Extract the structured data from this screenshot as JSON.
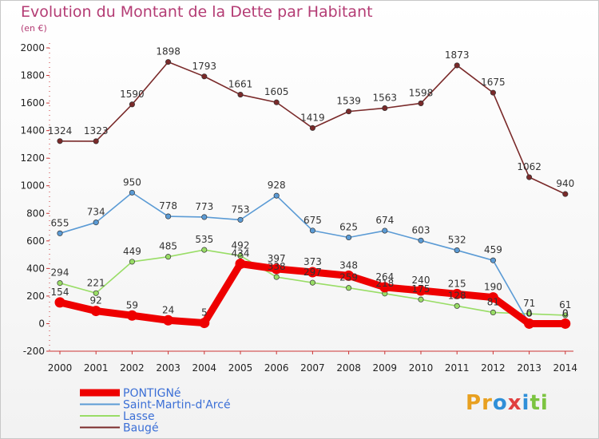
{
  "title": "Evolution du Montant de la Dette par Habitant",
  "subtitle": "(en €)",
  "logo": {
    "letters": [
      "P",
      "r",
      "o",
      "x",
      "i",
      "t",
      "i"
    ],
    "colors": [
      "#e8a020",
      "#e8a020",
      "#2f8fd8",
      "#e04040",
      "#2f8fd8",
      "#7cc440",
      "#7cc440"
    ]
  },
  "chart_data": {
    "type": "line",
    "x": [
      "2000",
      "2001",
      "2002",
      "2003",
      "2004",
      "2005",
      "2006",
      "2007",
      "2008",
      "2009",
      "2010",
      "2011",
      "2012",
      "2013",
      "2014"
    ],
    "ylim": [
      -200,
      2000
    ],
    "yticks": [
      "-200",
      "0",
      "200",
      "400",
      "600",
      "800",
      "1000",
      "1200",
      "1400",
      "1600",
      "1800",
      "2000"
    ],
    "grid": false,
    "legend_position": "bottom-left",
    "series": [
      {
        "name": "PONTIGNé",
        "color": "#ee0000",
        "values": [
          154,
          92,
          59,
          24,
          5,
          434,
          397,
          373,
          348,
          264,
          240,
          215,
          190,
          0,
          0
        ],
        "labels": [
          "154",
          "92",
          "59",
          "24",
          "5",
          "434",
          "397",
          "373",
          "348",
          "264",
          "240",
          "215",
          "190",
          "0",
          "0"
        ]
      },
      {
        "name": "Saint-Martin-d'Arcé",
        "color": "#5b9bd5",
        "values": [
          655,
          734,
          950,
          778,
          773,
          753,
          928,
          675,
          625,
          674,
          603,
          532,
          459,
          0,
          0
        ],
        "labels": [
          "655",
          "734",
          "950",
          "778",
          "773",
          "753",
          "928",
          "675",
          "625",
          "674",
          "603",
          "532",
          "459",
          "0",
          "0"
        ]
      },
      {
        "name": "Lasse",
        "color": "#99dd66",
        "values": [
          294,
          221,
          449,
          485,
          535,
          492,
          338,
          297,
          259,
          218,
          175,
          128,
          81,
          71,
          61
        ],
        "labels": [
          "294",
          "221",
          "449",
          "485",
          "535",
          "492",
          "338",
          "297",
          "259",
          "218",
          "175",
          "128",
          "81",
          "71",
          "61"
        ]
      },
      {
        "name": "Baugé",
        "color": "#7a2a2a",
        "values": [
          1324,
          1323,
          1590,
          1898,
          1793,
          1661,
          1605,
          1419,
          1539,
          1563,
          1598,
          1873,
          1675,
          1062,
          940
        ],
        "labels": [
          "1324",
          "1323",
          "1590",
          "1898",
          "1793",
          "1661",
          "1605",
          "1419",
          "1539",
          "1563",
          "1598",
          "1873",
          "1675",
          "1062",
          "940"
        ]
      }
    ]
  }
}
